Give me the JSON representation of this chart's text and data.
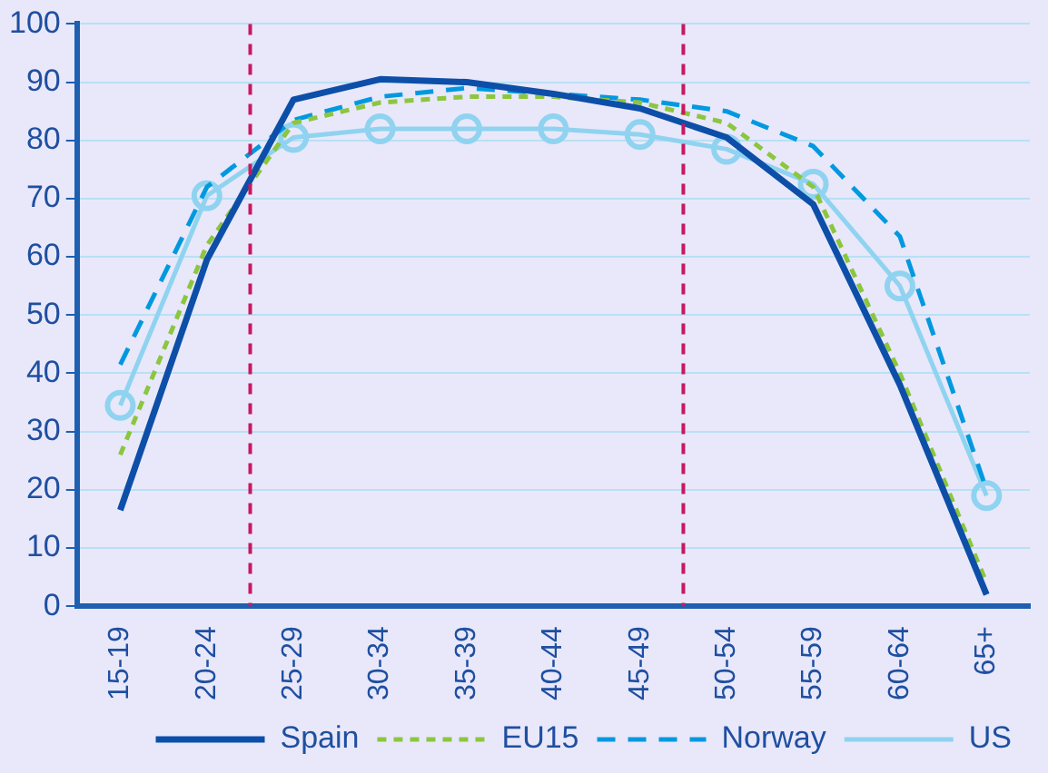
{
  "chart_data": {
    "type": "line",
    "categories": [
      "15-19",
      "20-24",
      "25-29",
      "30-34",
      "35-39",
      "40-44",
      "45-49",
      "50-54",
      "55-59",
      "60-64",
      "65+"
    ],
    "series": [
      {
        "name": "Spain",
        "color": "#0d4fa8",
        "line_style": "solid",
        "marker": "none",
        "values": [
          16.5,
          59.5,
          87,
          90.5,
          90,
          88,
          85.5,
          80.5,
          69,
          38,
          2
        ]
      },
      {
        "name": "EU15",
        "color": "#8cc63f",
        "line_style": "dotted",
        "marker": "none",
        "values": [
          26,
          62,
          83,
          86.5,
          87.5,
          87.5,
          86.5,
          83,
          72,
          40,
          4
        ]
      },
      {
        "name": "Norway",
        "color": "#0099e0",
        "line_style": "dashed",
        "marker": "none",
        "values": [
          41.5,
          72,
          83.5,
          87.5,
          89,
          88,
          87,
          85,
          79,
          63.5,
          20
        ]
      },
      {
        "name": "US",
        "color": "#8fd3f0",
        "line_style": "solid",
        "marker": "circle",
        "values": [
          34.5,
          70.5,
          80.5,
          82,
          82,
          82,
          81,
          78.5,
          72.5,
          55,
          19
        ]
      }
    ],
    "ylim": [
      0,
      100
    ],
    "yticks": [
      0,
      10,
      20,
      30,
      40,
      50,
      60,
      70,
      80,
      90,
      100
    ],
    "grid": "y",
    "legend": "bottom"
  }
}
